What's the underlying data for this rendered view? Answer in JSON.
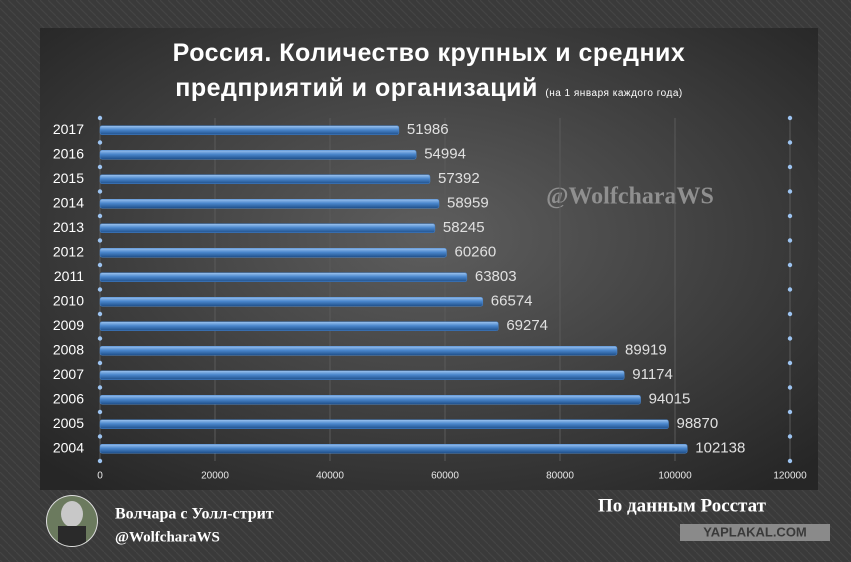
{
  "chart_data": {
    "type": "bar",
    "orientation": "horizontal",
    "title": "Россия. Количество крупных и средних предприятий и организаций",
    "subtitle": "(на 1 января каждого года)",
    "categories": [
      "2017",
      "2016",
      "2015",
      "2014",
      "2013",
      "2012",
      "2011",
      "2010",
      "2009",
      "2008",
      "2007",
      "2006",
      "2005",
      "2004"
    ],
    "values": [
      51986,
      54994,
      57392,
      58959,
      58245,
      60260,
      63803,
      66574,
      69274,
      89919,
      91174,
      94015,
      98870,
      102138
    ],
    "color": "#4a86cc",
    "xlim": [
      0,
      120000
    ],
    "xticks": [
      0,
      20000,
      40000,
      60000,
      80000,
      100000,
      120000
    ],
    "grid": true,
    "watermark": "@WolfcharaWS",
    "author": {
      "name": "Волчара с Уолл-стрит",
      "handle": "@WolfcharaWS"
    },
    "source": "По данным Росстат",
    "site": "YAPLAKAL.COM"
  }
}
